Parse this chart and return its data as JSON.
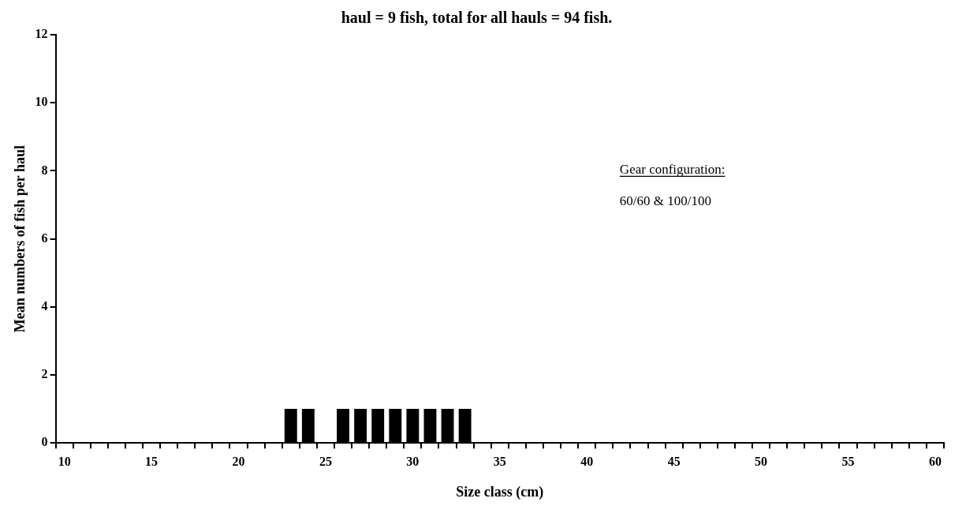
{
  "chart_data": {
    "type": "bar",
    "title": "haul = 9 fish, total for all hauls = 94 fish.",
    "xlabel": "Size class (cm)",
    "ylabel": "Mean numbers of fish per haul",
    "categories": [
      "10",
      null,
      null,
      null,
      null,
      "15",
      null,
      null,
      null,
      null,
      "20",
      null,
      null,
      null,
      null,
      "25",
      null,
      null,
      null,
      null,
      "30",
      null,
      null,
      null,
      null,
      "35",
      null,
      null,
      null,
      null,
      "40",
      null,
      null,
      null,
      null,
      "45",
      null,
      null,
      null,
      null,
      "50",
      null,
      null,
      null,
      null,
      "55",
      null,
      null,
      null,
      null,
      "60"
    ],
    "values": [
      0,
      0,
      0,
      0,
      0,
      0,
      0,
      0,
      0,
      0,
      0,
      0,
      0,
      1,
      1,
      0,
      1,
      1,
      1,
      1,
      1,
      1,
      1,
      1,
      0,
      0,
      0,
      0,
      0,
      0,
      0,
      0,
      0,
      0,
      0,
      0,
      0,
      0,
      0,
      0,
      0,
      0,
      0,
      0,
      0,
      0,
      0,
      0,
      0,
      0,
      0
    ],
    "color": "#000000",
    "ylim": [
      0,
      12
    ],
    "yticks": [
      0,
      2,
      4,
      6,
      8,
      10,
      12
    ],
    "grid": false,
    "annotations": [
      "Gear configuration:",
      "60/60 & 100/100"
    ]
  }
}
